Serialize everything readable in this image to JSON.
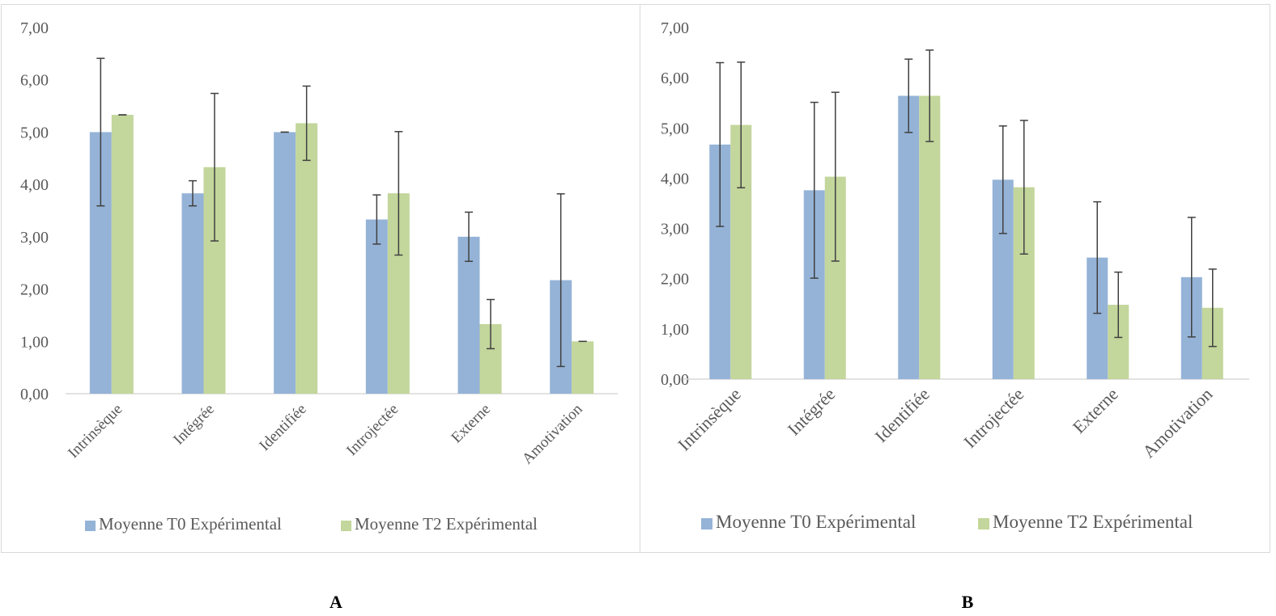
{
  "charts": [
    {
      "caption": "A",
      "chart_data": {
        "type": "bar",
        "categories": [
          "Intrinsèque",
          "Intégrée",
          "Identifiée",
          "Introjectée",
          "Externe",
          "Amotivation"
        ],
        "series": [
          {
            "name": "Moyenne T0 Expérimental",
            "color": "#95b3d7",
            "values": [
              5.0,
              3.83,
              5.0,
              3.33,
              3.0,
              2.17
            ],
            "error": [
              1.41,
              0.24,
              0.0,
              0.47,
              0.47,
              1.65
            ]
          },
          {
            "name": "Moyenne T2 Expérimental",
            "color": "#c3d69b",
            "values": [
              5.33,
              4.33,
              5.17,
              3.83,
              1.33,
              1.0
            ],
            "error": [
              0.0,
              1.41,
              0.71,
              1.18,
              0.47,
              0.0
            ]
          }
        ],
        "ylim": [
          0,
          7
        ],
        "yticks": [
          "0,00",
          "1,00",
          "2,00",
          "3,00",
          "4,00",
          "5,00",
          "6,00",
          "7,00"
        ],
        "legend": "bottom",
        "grid": false
      }
    },
    {
      "caption": "B",
      "chart_data": {
        "type": "bar",
        "categories": [
          "Intrinsèque",
          "Intégrée",
          "Identifiée",
          "Introjectée",
          "Externe",
          "Amotivation"
        ],
        "series": [
          {
            "name": "Moyenne T0 Expérimental",
            "color": "#95b3d7",
            "values": [
              4.67,
              3.76,
              5.64,
              3.97,
              2.42,
              2.03
            ],
            "error": [
              1.63,
              1.75,
              0.73,
              1.07,
              1.11,
              1.19
            ]
          },
          {
            "name": "Moyenne T2 Expérimental",
            "color": "#c3d69b",
            "values": [
              5.06,
              4.03,
              5.64,
              3.82,
              1.48,
              1.42
            ],
            "error": [
              1.25,
              1.68,
              0.91,
              1.33,
              0.65,
              0.77
            ]
          }
        ],
        "ylim": [
          0,
          7
        ],
        "yticks": [
          "0,00",
          "1,00",
          "2,00",
          "3,00",
          "4,00",
          "5,00",
          "6,00",
          "7,00"
        ],
        "legend": "bottom",
        "grid": false
      }
    }
  ]
}
